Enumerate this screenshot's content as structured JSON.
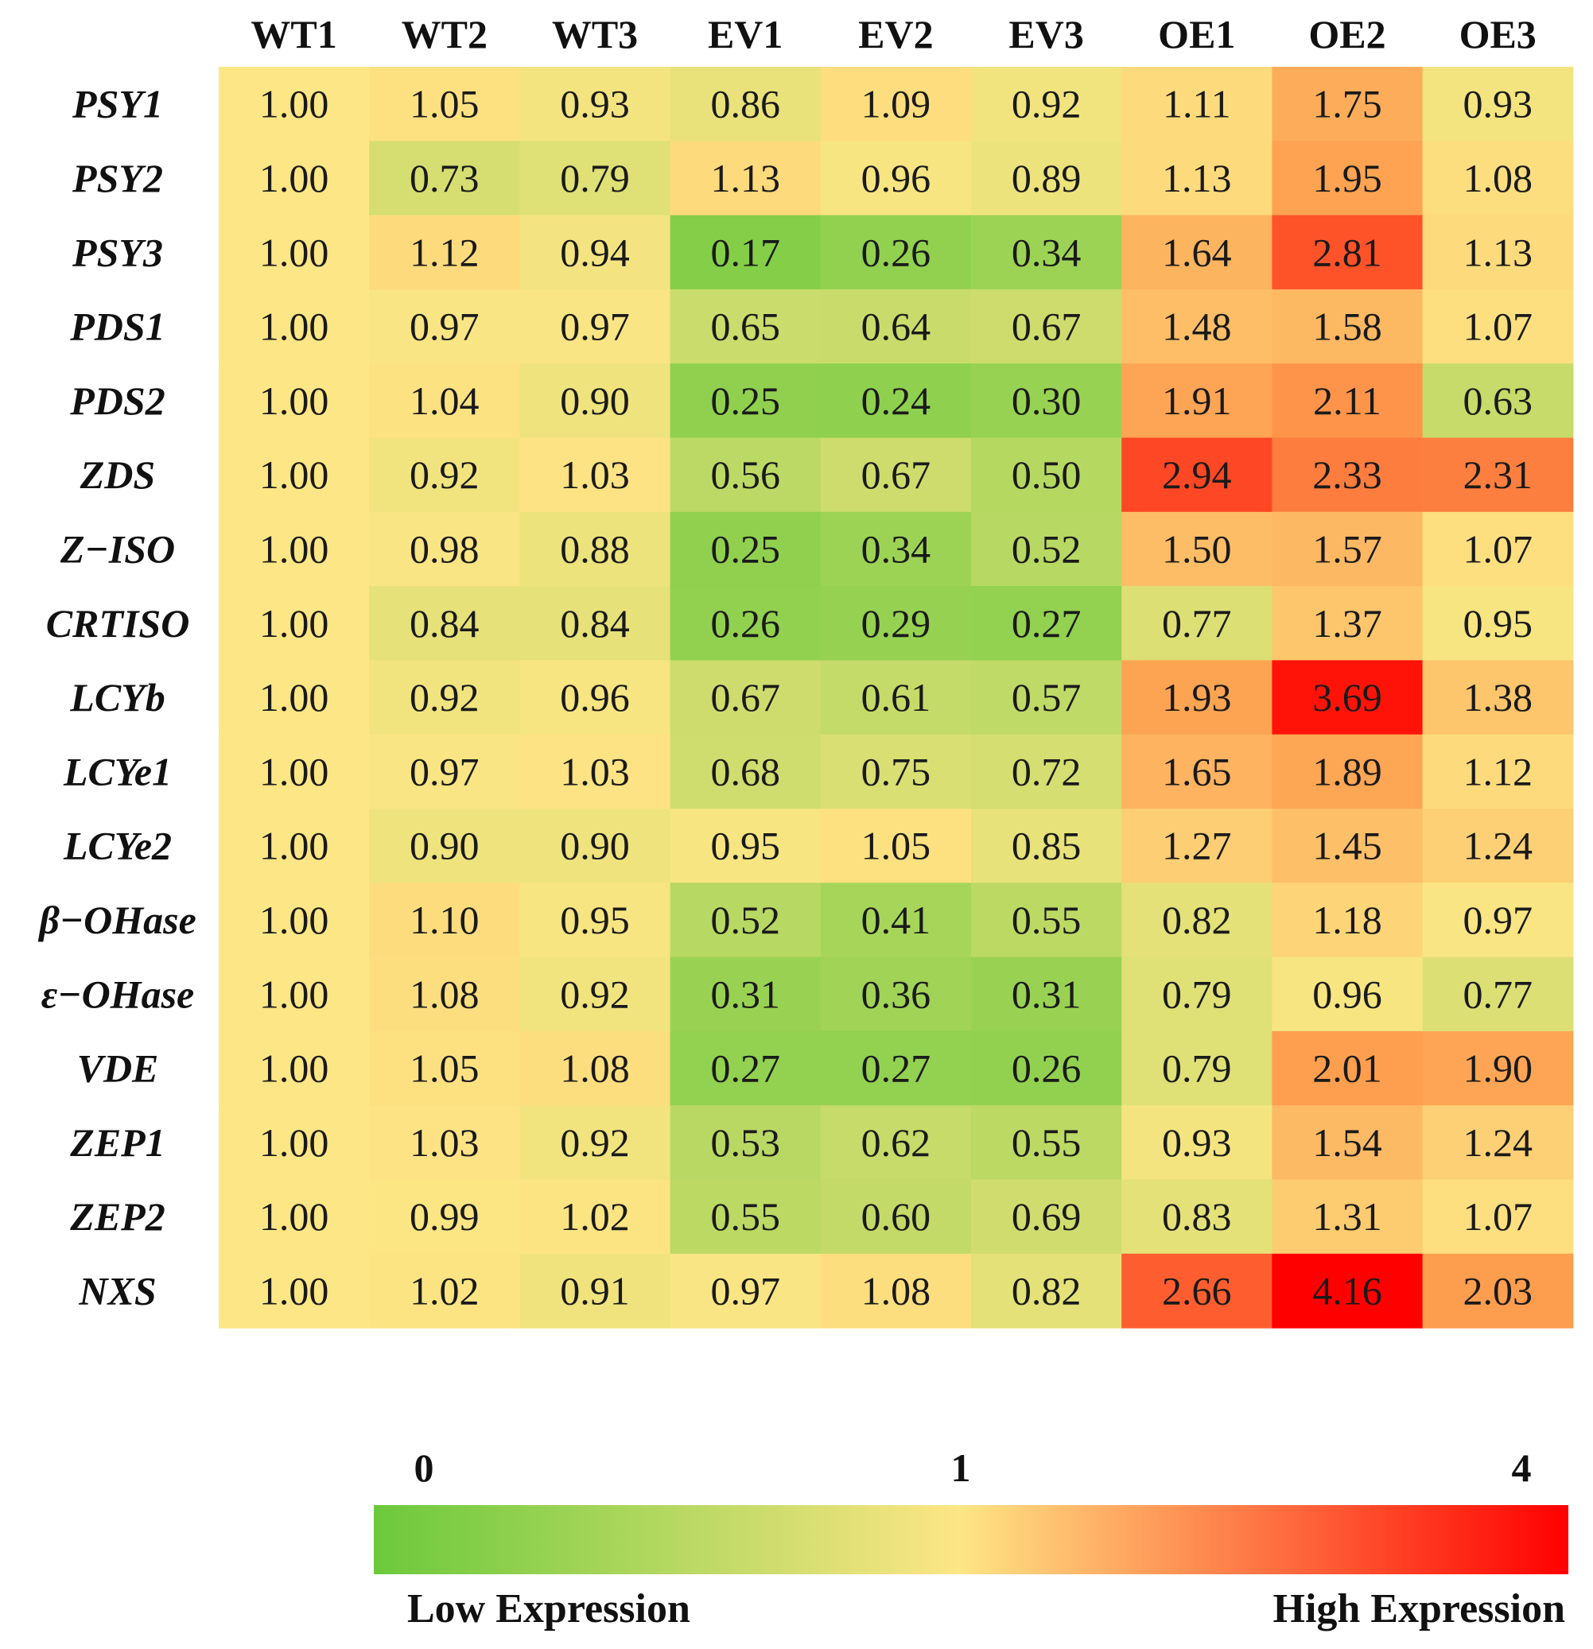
{
  "chart_data": {
    "type": "heatmap",
    "columns": [
      "WT1",
      "WT2",
      "WT3",
      "EV1",
      "EV2",
      "EV3",
      "OE1",
      "OE2",
      "OE3"
    ],
    "rows": [
      "PSY1",
      "PSY2",
      "PSY3",
      "PDS1",
      "PDS2",
      "ZDS",
      "Z−ISO",
      "CRTISO",
      "LCYb",
      "LCYe1",
      "LCYe2",
      "β−OHase",
      "ε−OHase",
      "VDE",
      "ZEP1",
      "ZEP2",
      "NXS"
    ],
    "values": [
      [
        "1.00",
        "1.05",
        "0.93",
        "0.86",
        "1.09",
        "0.92",
        "1.11",
        "1.75",
        "0.93"
      ],
      [
        "1.00",
        "0.73",
        "0.79",
        "1.13",
        "0.96",
        "0.89",
        "1.13",
        "1.95",
        "1.08"
      ],
      [
        "1.00",
        "1.12",
        "0.94",
        "0.17",
        "0.26",
        "0.34",
        "1.64",
        "2.81",
        "1.13"
      ],
      [
        "1.00",
        "0.97",
        "0.97",
        "0.65",
        "0.64",
        "0.67",
        "1.48",
        "1.58",
        "1.07"
      ],
      [
        "1.00",
        "1.04",
        "0.90",
        "0.25",
        "0.24",
        "0.30",
        "1.91",
        "2.11",
        "0.63"
      ],
      [
        "1.00",
        "0.92",
        "1.03",
        "0.56",
        "0.67",
        "0.50",
        "2.94",
        "2.33",
        "2.31"
      ],
      [
        "1.00",
        "0.98",
        "0.88",
        "0.25",
        "0.34",
        "0.52",
        "1.50",
        "1.57",
        "1.07"
      ],
      [
        "1.00",
        "0.84",
        "0.84",
        "0.26",
        "0.29",
        "0.27",
        "0.77",
        "1.37",
        "0.95"
      ],
      [
        "1.00",
        "0.92",
        "0.96",
        "0.67",
        "0.61",
        "0.57",
        "1.93",
        "3.69",
        "1.38"
      ],
      [
        "1.00",
        "0.97",
        "1.03",
        "0.68",
        "0.75",
        "0.72",
        "1.65",
        "1.89",
        "1.12"
      ],
      [
        "1.00",
        "0.90",
        "0.90",
        "0.95",
        "1.05",
        "0.85",
        "1.27",
        "1.45",
        "1.24"
      ],
      [
        "1.00",
        "1.10",
        "0.95",
        "0.52",
        "0.41",
        "0.55",
        "0.82",
        "1.18",
        "0.97"
      ],
      [
        "1.00",
        "1.08",
        "0.92",
        "0.31",
        "0.36",
        "0.31",
        "0.79",
        "0.96",
        "0.77"
      ],
      [
        "1.00",
        "1.05",
        "1.08",
        "0.27",
        "0.27",
        "0.26",
        "0.79",
        "2.01",
        "1.90"
      ],
      [
        "1.00",
        "1.03",
        "0.92",
        "0.53",
        "0.62",
        "0.55",
        "0.93",
        "1.54",
        "1.24"
      ],
      [
        "1.00",
        "0.99",
        "1.02",
        "0.55",
        "0.60",
        "0.69",
        "0.83",
        "1.31",
        "1.07"
      ],
      [
        "1.00",
        "1.02",
        "0.91",
        "0.97",
        "1.08",
        "0.82",
        "2.66",
        "4.16",
        "2.03"
      ]
    ],
    "colorbar": {
      "ticks": [
        "0",
        "1",
        "4"
      ],
      "low_label": "Low Expression",
      "high_label": "High Expression"
    },
    "colors": {
      "low": "#6cc93c",
      "mid": "#fde685",
      "high": "#ff0000"
    }
  }
}
